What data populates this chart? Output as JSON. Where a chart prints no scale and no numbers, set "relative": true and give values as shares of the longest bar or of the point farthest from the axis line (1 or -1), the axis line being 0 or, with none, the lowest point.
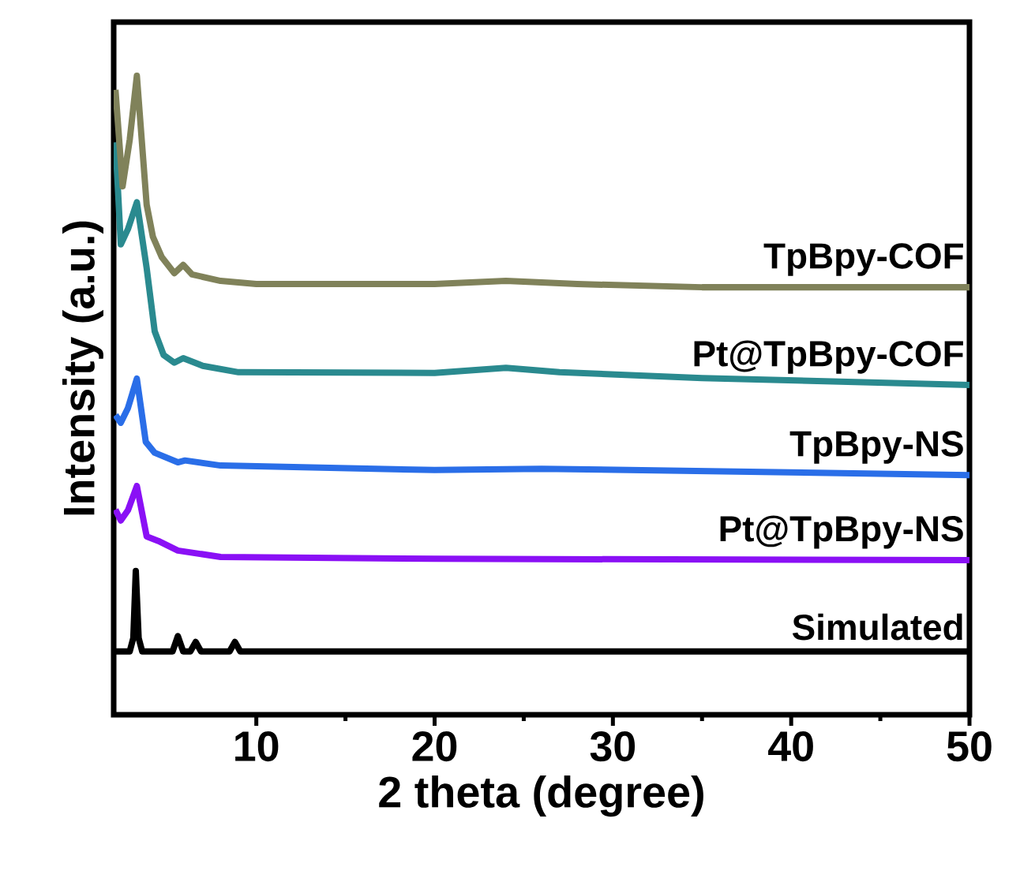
{
  "chart_data": {
    "type": "line",
    "relative": true,
    "xlabel": "2 theta (degree)",
    "ylabel": "Intensity (a.u.)",
    "xlim": [
      2,
      50
    ],
    "xticks": [
      10,
      20,
      30,
      40,
      50
    ],
    "grid": false,
    "legend": false,
    "marker": "none",
    "line_style": "solid",
    "series": [
      {
        "name": "Simulated",
        "color": "#000000",
        "x": [
          2,
          2.9,
          3.1,
          3.24,
          3.4,
          3.6,
          5.3,
          5.6,
          5.9,
          6.3,
          6.6,
          6.9,
          8.5,
          8.8,
          9.1,
          20,
          50
        ],
        "values": [
          0.099,
          0.099,
          0.12,
          0.225,
          0.12,
          0.099,
          0.099,
          0.123,
          0.099,
          0.099,
          0.114,
          0.099,
          0.099,
          0.114,
          0.099,
          0.099,
          0.099
        ]
      },
      {
        "name": "Pt@TpBpy-NS",
        "color": "#8a10f5",
        "x": [
          2.1,
          2.4,
          2.8,
          3.3,
          3.85,
          4.5,
          5.6,
          8,
          20,
          50
        ],
        "values": [
          0.321,
          0.304,
          0.32,
          0.358,
          0.279,
          0.272,
          0.257,
          0.247,
          0.244,
          0.242
        ]
      },
      {
        "name": "TpBpy-NS",
        "color": "#2a6ee8",
        "x": [
          2.1,
          2.4,
          2.8,
          3.3,
          3.8,
          4.3,
          5.6,
          6,
          8,
          20,
          26,
          50
        ],
        "values": [
          0.469,
          0.457,
          0.48,
          0.526,
          0.427,
          0.41,
          0.395,
          0.398,
          0.39,
          0.383,
          0.385,
          0.375
        ]
      },
      {
        "name": "Pt@TpBpy-COF",
        "color": "#2a8a8f",
        "x": [
          2.1,
          2.4,
          2.8,
          3.3,
          3.85,
          4.3,
          4.8,
          5.4,
          5.9,
          7,
          9,
          20,
          24,
          27,
          35,
          50
        ],
        "values": [
          0.896,
          0.736,
          0.76,
          0.802,
          0.699,
          0.6,
          0.563,
          0.551,
          0.558,
          0.546,
          0.536,
          0.535,
          0.543,
          0.536,
          0.527,
          0.516
        ]
      },
      {
        "name": "TpBpy-COF",
        "color": "#80825a",
        "x": [
          2.1,
          2.5,
          2.9,
          3.3,
          3.85,
          4.2,
          4.7,
          5.4,
          5.9,
          6.4,
          8,
          10,
          20,
          24,
          28,
          35,
          50
        ],
        "values": [
          0.978,
          0.827,
          0.9,
          1,
          0.798,
          0.748,
          0.716,
          0.691,
          0.704,
          0.689,
          0.679,
          0.674,
          0.674,
          0.679,
          0.674,
          0.669,
          0.669
        ]
      }
    ]
  }
}
